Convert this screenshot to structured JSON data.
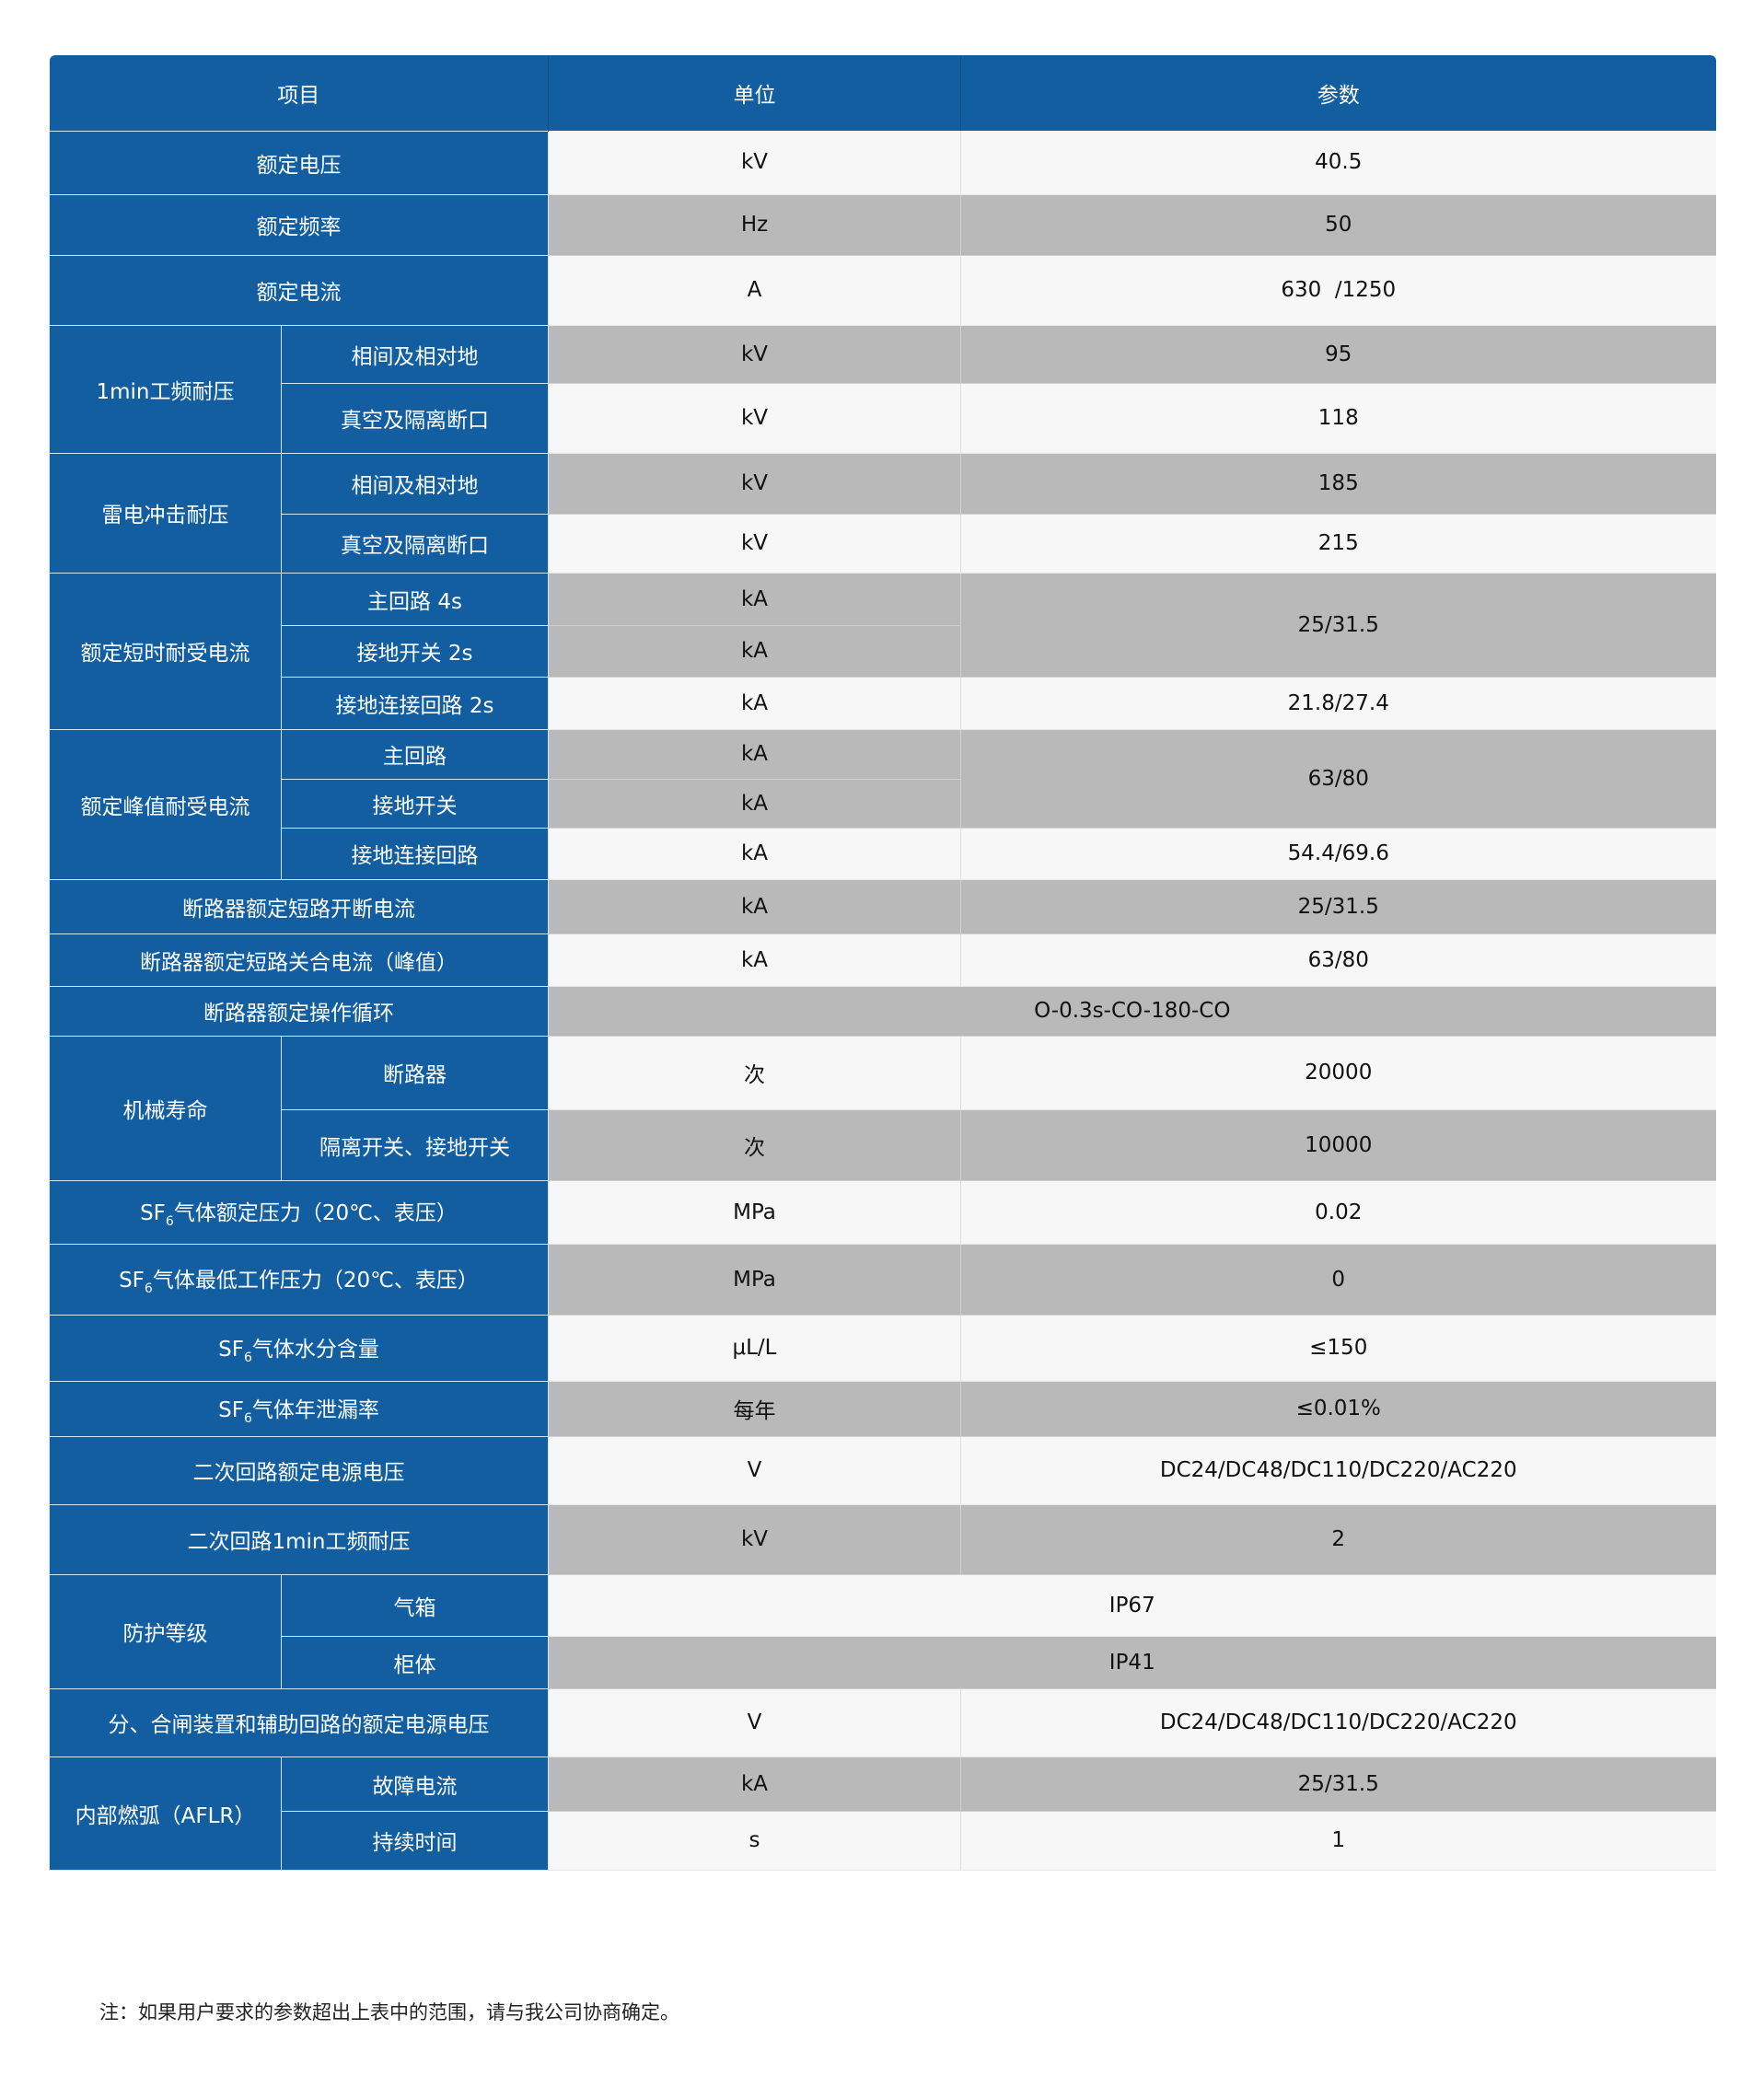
{
  "header": {
    "item": "项目",
    "unit": "单位",
    "param": "参数"
  },
  "colors": {
    "blue": "#125ea0",
    "grey": "#b9b9b9",
    "white": "#f7f7f7"
  },
  "rows": [
    {
      "label": "额定电压",
      "unit": "kV",
      "value": "40.5"
    },
    {
      "label": "额定频率",
      "unit": "Hz",
      "value": "50"
    },
    {
      "label": "额定电流",
      "unit": "A",
      "value": "630  /1250"
    },
    {
      "group": "1min工频耐压",
      "sub": "相间及相对地",
      "unit": "kV",
      "value": "95"
    },
    {
      "sub": "真空及隔离断口",
      "unit": "kV",
      "value": "118"
    },
    {
      "group": "雷电冲击耐压",
      "sub": "相间及相对地",
      "unit": "kV",
      "value": "185"
    },
    {
      "sub": "真空及隔离断口",
      "unit": "kV",
      "value": "215"
    },
    {
      "group": "额定短时耐受电流",
      "sub": "主回路 4s",
      "unit": "kA",
      "value": "25/31.5"
    },
    {
      "sub": "接地开关 2s",
      "unit": "kA"
    },
    {
      "sub": "接地连接回路 2s",
      "unit": "kA",
      "value": "21.8/27.4"
    },
    {
      "group": "额定峰值耐受电流",
      "sub": "主回路",
      "unit": "kA",
      "value": "63/80"
    },
    {
      "sub": "接地开关",
      "unit": "kA"
    },
    {
      "sub": "接地连接回路",
      "unit": "kA",
      "value": "54.4/69.6"
    },
    {
      "label": "断路器额定短路开断电流",
      "unit": "kA",
      "value": "25/31.5"
    },
    {
      "label": "断路器额定短路关合电流（峰值）",
      "unit": "kA",
      "value": "63/80"
    },
    {
      "label": "断路器额定操作循环",
      "value": "O-0.3s-CO-180-CO"
    },
    {
      "group": "机械寿命",
      "sub": "断路器",
      "unit": "次",
      "value": "20000"
    },
    {
      "sub": "隔离开关、接地开关",
      "unit": "次",
      "value": "10000"
    },
    {
      "pre": "SF",
      "subscript": "6",
      "post": "气体额定压力（20℃、表压）",
      "unit": "MPa",
      "value": "0.02"
    },
    {
      "pre": "SF",
      "subscript": "6",
      "post": "气体最低工作压力（20℃、表压）",
      "unit": "MPa",
      "value": "0"
    },
    {
      "pre": "SF",
      "subscript": "6",
      "post": "气体水分含量",
      "unit": "μL/L",
      "value": "≤150"
    },
    {
      "pre": "SF",
      "subscript": "6",
      "post": "气体年泄漏率",
      "unit": "每年",
      "value": "≤0.01%"
    },
    {
      "label": "二次回路额定电源电压",
      "unit": "V",
      "value": "DC24/DC48/DC110/DC220/AC220"
    },
    {
      "label": "二次回路1min工频耐压",
      "unit": "kV",
      "value": "2"
    },
    {
      "group": "防护等级",
      "sub": "气箱",
      "value": "IP67"
    },
    {
      "sub": "柜体",
      "value": "IP41"
    },
    {
      "label": "分、合闸装置和辅助回路的额定电源电压",
      "unit": "V",
      "value": "DC24/DC48/DC110/DC220/AC220"
    },
    {
      "group": "内部燃弧（AFLR）",
      "sub": "故障电流",
      "unit": "kA",
      "value": "25/31.5"
    },
    {
      "sub": "持续时间",
      "unit": "s",
      "value": "1"
    }
  ],
  "note": "注：如果用户要求的参数超出上表中的范围，请与我公司协商确定。"
}
